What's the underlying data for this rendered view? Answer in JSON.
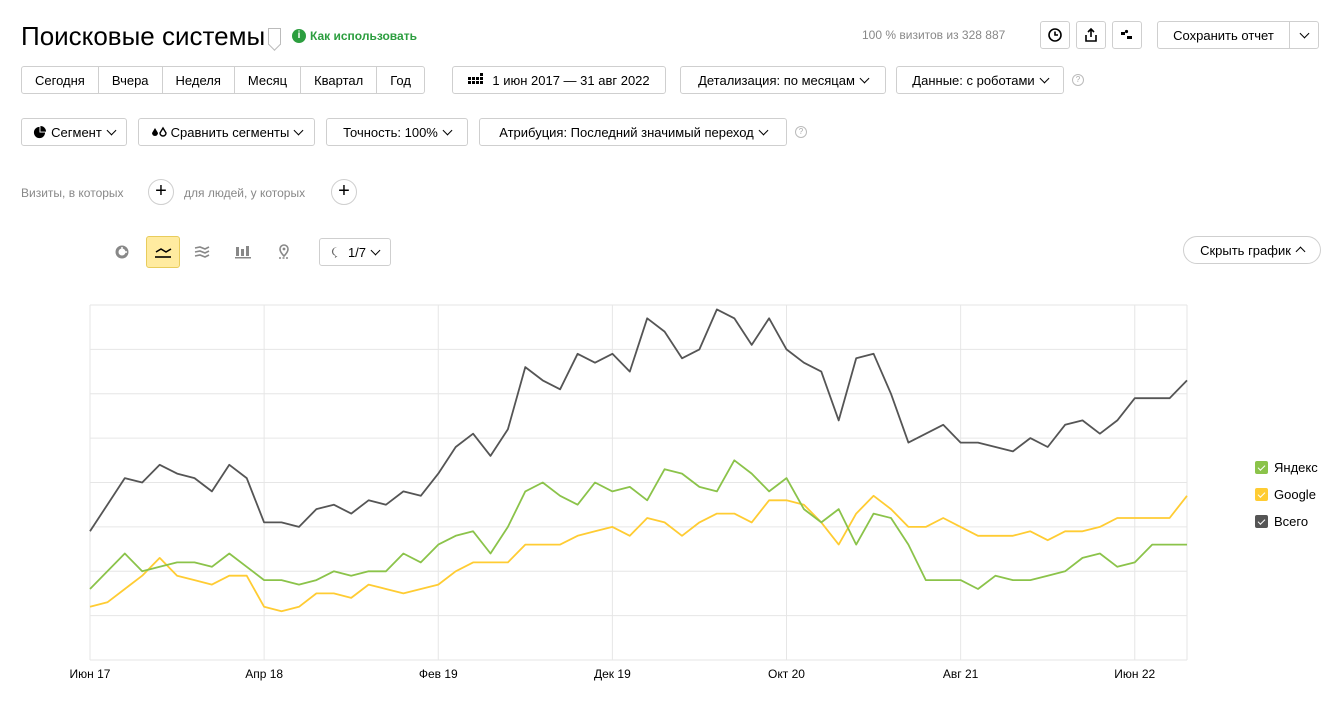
{
  "header": {
    "title": "Поисковые системы",
    "how_to": "Как использовать",
    "visits_info": "100 % визитов из 328 887",
    "save_report": "Сохранить отчет"
  },
  "periods": [
    "Сегодня",
    "Вчера",
    "Неделя",
    "Месяц",
    "Квартал",
    "Год"
  ],
  "date_range": "1 июн 2017 — 31 авг 2022",
  "detail": "Детализация: по месяцам",
  "data_mode": "Данные: с роботами",
  "segment": "Сегмент",
  "compare": "Сравнить сегменты",
  "accuracy": "Точность: 100%",
  "attribution": "Атрибуция: Последний значимый переход",
  "filters": {
    "visits_where": "Визиты, в которых",
    "people_where": "для людей, у которых"
  },
  "chart_toolbar": {
    "annotations": "1/7",
    "hide_chart": "Скрыть график"
  },
  "legend": [
    {
      "label": "Яндекс",
      "color": "#8bc34a"
    },
    {
      "label": "Google",
      "color": "#ffcc33"
    },
    {
      "label": "Всего",
      "color": "#555555"
    }
  ],
  "colors": {
    "accent_green": "#2c9e3f",
    "active_tool": "#ffeba0"
  },
  "chart_data": {
    "type": "line",
    "x_tick_labels": [
      "Июн 17",
      "Апр 18",
      "Фев 19",
      "Дек 19",
      "Окт 20",
      "Авг 21",
      "Июн 22"
    ],
    "x_tick_indices": [
      0,
      10,
      20,
      30,
      40,
      50,
      60
    ],
    "grid": true,
    "legend_position": "right",
    "ylim": [
      0,
      8
    ],
    "series": [
      {
        "name": "Яндекс",
        "color": "#8bc34a",
        "values": [
          1.6,
          2.0,
          2.4,
          2.0,
          2.1,
          2.2,
          2.2,
          2.1,
          2.4,
          2.1,
          1.8,
          1.8,
          1.7,
          1.8,
          2.0,
          1.9,
          2.0,
          2.0,
          2.4,
          2.2,
          2.6,
          2.8,
          2.9,
          2.4,
          3.0,
          3.8,
          4.0,
          3.7,
          3.5,
          4.0,
          3.8,
          3.9,
          3.6,
          4.3,
          4.2,
          3.9,
          3.8,
          4.5,
          4.2,
          3.8,
          4.1,
          3.4,
          3.1,
          3.4,
          2.6,
          3.3,
          3.2,
          2.6,
          1.8,
          1.8,
          1.8,
          1.6,
          1.9,
          1.8,
          1.8,
          1.9,
          2.0,
          2.3,
          2.4,
          2.1,
          2.2,
          2.6,
          2.6,
          2.6
        ]
      },
      {
        "name": "Google",
        "color": "#ffcc33",
        "values": [
          1.2,
          1.3,
          1.6,
          1.9,
          2.3,
          1.9,
          1.8,
          1.7,
          1.9,
          1.9,
          1.2,
          1.1,
          1.2,
          1.5,
          1.5,
          1.4,
          1.7,
          1.6,
          1.5,
          1.6,
          1.7,
          2.0,
          2.2,
          2.2,
          2.2,
          2.6,
          2.6,
          2.6,
          2.8,
          2.9,
          3.0,
          2.8,
          3.2,
          3.1,
          2.8,
          3.1,
          3.3,
          3.3,
          3.1,
          3.6,
          3.6,
          3.5,
          3.1,
          2.6,
          3.3,
          3.7,
          3.4,
          3.0,
          3.0,
          3.2,
          3.0,
          2.8,
          2.8,
          2.8,
          2.9,
          2.7,
          2.9,
          2.9,
          3.0,
          3.2,
          3.2,
          3.2,
          3.2,
          3.7
        ]
      },
      {
        "name": "Всего",
        "color": "#555555",
        "values": [
          2.9,
          3.5,
          4.1,
          4.0,
          4.4,
          4.2,
          4.1,
          3.8,
          4.4,
          4.1,
          3.1,
          3.1,
          3.0,
          3.4,
          3.5,
          3.3,
          3.6,
          3.5,
          3.8,
          3.7,
          4.2,
          4.8,
          5.1,
          4.6,
          5.2,
          6.6,
          6.3,
          6.1,
          6.9,
          6.7,
          6.9,
          6.5,
          7.7,
          7.4,
          6.8,
          7.0,
          7.9,
          7.7,
          7.1,
          7.7,
          7.0,
          6.7,
          6.5,
          5.4,
          6.8,
          6.9,
          6.0,
          4.9,
          5.1,
          5.3,
          4.9,
          4.9,
          4.8,
          4.7,
          5.0,
          4.8,
          5.3,
          5.4,
          5.1,
          5.4,
          5.9,
          5.9,
          5.9,
          6.3
        ]
      }
    ]
  }
}
